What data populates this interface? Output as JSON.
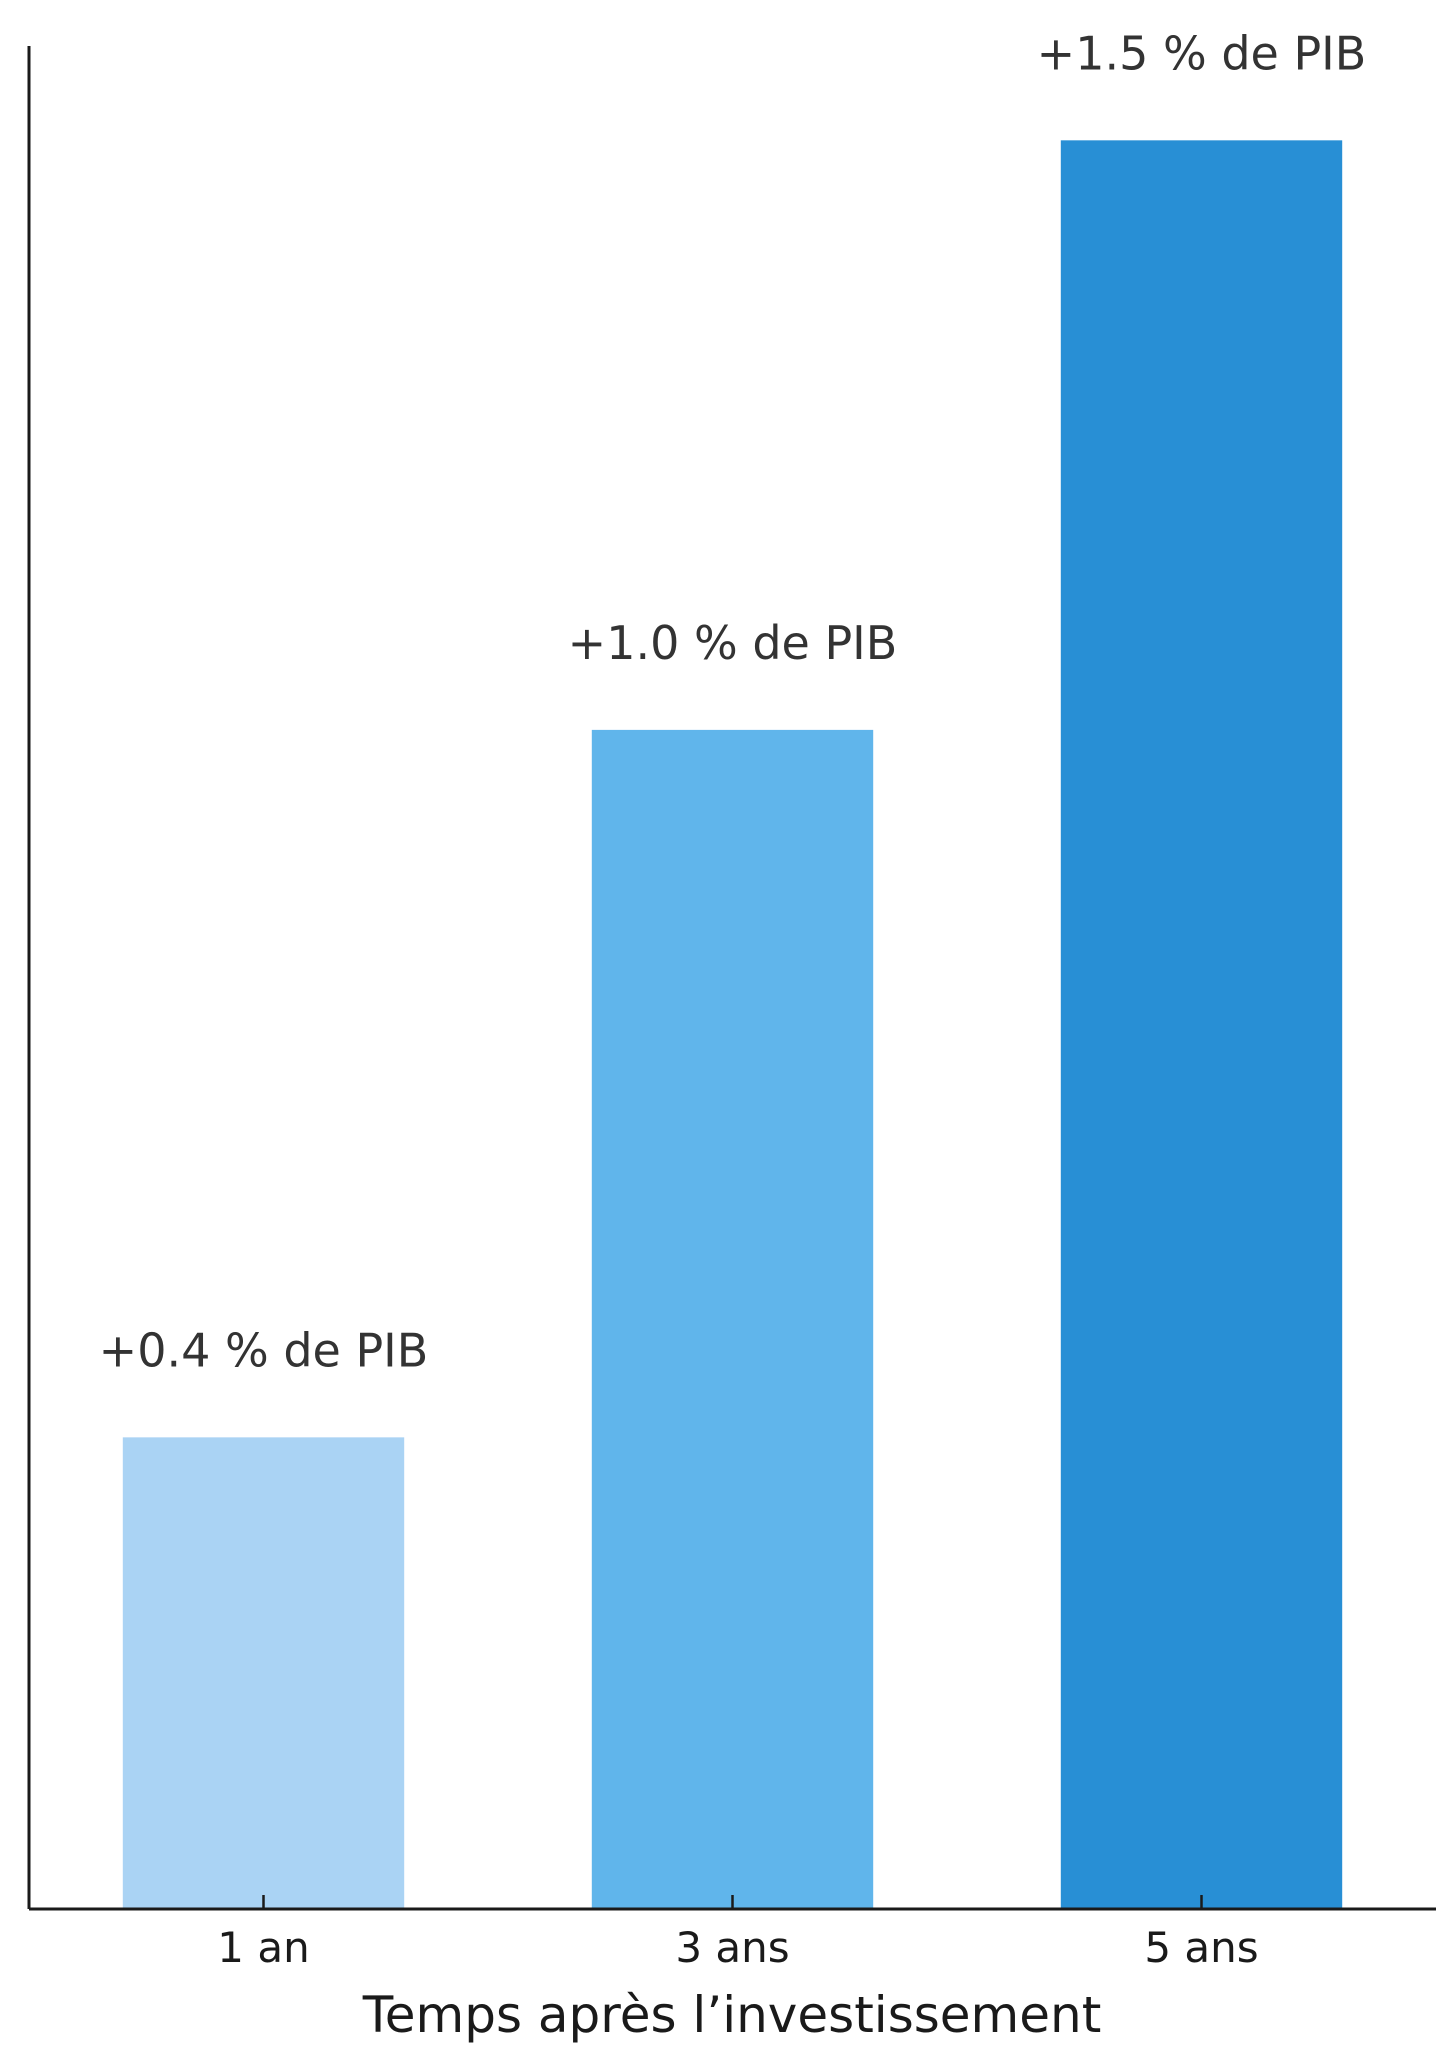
{
  "chart_data": {
    "type": "bar",
    "title": "",
    "xlabel": "Temps après l’investissement",
    "ylabel": "",
    "categories": [
      "1 an",
      "3 ans",
      "5 ans"
    ],
    "values": [
      0.4,
      1.0,
      1.5
    ],
    "data_labels": [
      "+0.4 % de PIB",
      "+1.0 % de PIB",
      "+1.5 % de PIB"
    ],
    "colors": [
      "#aad3f4",
      "#60b5eb",
      "#288fd5"
    ],
    "ylim": [
      0,
      1.58
    ],
    "y_ticks_shown": false,
    "grid": false,
    "legend": "none"
  }
}
